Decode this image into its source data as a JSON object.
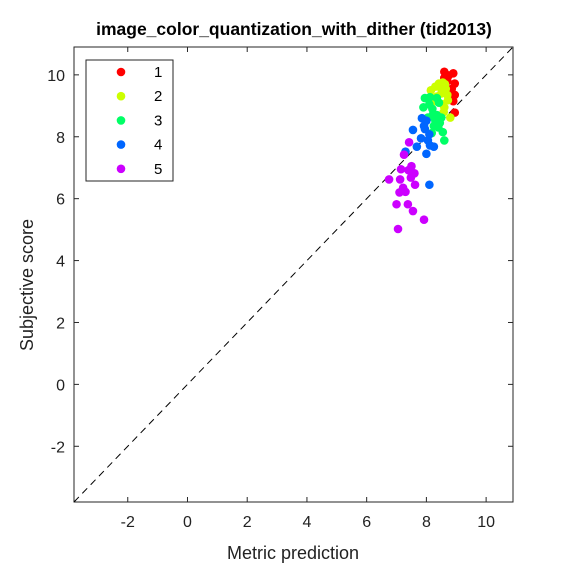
{
  "chart_data": {
    "type": "scatter",
    "title": "image_color_quantization_with_dither (tid2013)",
    "xlabel": "Metric prediction",
    "ylabel": "Subjective score",
    "xlim": [
      -3.8,
      10.9
    ],
    "ylim": [
      -3.8,
      10.9
    ],
    "xticks": [
      -2,
      0,
      2,
      4,
      6,
      8,
      10
    ],
    "yticks": [
      -2,
      0,
      2,
      4,
      6,
      8,
      10
    ],
    "reference_line": "y = x (dashed)",
    "grid": false,
    "legend_placement": "top-left",
    "series": [
      {
        "name": "1",
        "color": "#ff0000",
        "points": [
          [
            8.6,
            10.1
          ],
          [
            8.75,
            9.98
          ],
          [
            8.9,
            10.05
          ],
          [
            8.95,
            9.72
          ],
          [
            8.85,
            9.55
          ],
          [
            8.95,
            9.35
          ],
          [
            8.9,
            9.15
          ],
          [
            8.8,
            9.45
          ],
          [
            8.7,
            9.8
          ],
          [
            8.95,
            8.78
          ],
          [
            8.6,
            9.9
          ],
          [
            8.8,
            9.2
          ]
        ]
      },
      {
        "name": "2",
        "color": "#ccff00",
        "points": [
          [
            8.3,
            9.62
          ],
          [
            8.42,
            9.72
          ],
          [
            8.55,
            9.75
          ],
          [
            8.65,
            9.55
          ],
          [
            8.5,
            9.4
          ],
          [
            8.72,
            9.18
          ],
          [
            8.55,
            9.05
          ],
          [
            8.35,
            9.3
          ],
          [
            8.6,
            8.95
          ],
          [
            8.8,
            8.62
          ],
          [
            8.15,
            9.5
          ],
          [
            8.7,
            9.35
          ],
          [
            8.48,
            9.58
          ],
          [
            8.62,
            9.7
          ],
          [
            8.25,
            9.15
          ],
          [
            8.58,
            8.8
          ]
        ]
      },
      {
        "name": "3",
        "color": "#00ff66",
        "points": [
          [
            7.95,
            9.25
          ],
          [
            8.1,
            9.05
          ],
          [
            8.2,
            8.9
          ],
          [
            8.35,
            8.7
          ],
          [
            8.45,
            8.45
          ],
          [
            8.05,
            8.62
          ],
          [
            8.3,
            8.52
          ],
          [
            8.5,
            8.62
          ],
          [
            8.55,
            8.15
          ],
          [
            8.25,
            8.35
          ],
          [
            8.6,
            7.88
          ],
          [
            7.9,
            8.95
          ],
          [
            8.12,
            9.28
          ],
          [
            8.42,
            9.1
          ],
          [
            8.18,
            8.12
          ],
          [
            8.4,
            8.3
          ],
          [
            8.22,
            8.72
          ],
          [
            8.35,
            9.25
          ]
        ]
      },
      {
        "name": "4",
        "color": "#0066ff",
        "points": [
          [
            7.85,
            8.6
          ],
          [
            8.0,
            8.52
          ],
          [
            7.95,
            8.25
          ],
          [
            8.1,
            8.08
          ],
          [
            7.55,
            8.22
          ],
          [
            7.82,
            7.95
          ],
          [
            8.12,
            7.72
          ],
          [
            8.0,
            7.45
          ],
          [
            7.68,
            7.68
          ],
          [
            8.25,
            7.68
          ],
          [
            8.1,
            6.45
          ],
          [
            7.3,
            7.52
          ],
          [
            7.92,
            8.35
          ],
          [
            8.05,
            7.88
          ]
        ]
      },
      {
        "name": "5",
        "color": "#cc00ff",
        "points": [
          [
            7.42,
            7.82
          ],
          [
            7.25,
            7.42
          ],
          [
            7.5,
            7.05
          ],
          [
            7.6,
            6.82
          ],
          [
            7.48,
            6.68
          ],
          [
            7.12,
            6.62
          ],
          [
            6.75,
            6.62
          ],
          [
            7.3,
            6.22
          ],
          [
            7.1,
            6.2
          ],
          [
            7.22,
            6.35
          ],
          [
            7.0,
            5.82
          ],
          [
            7.38,
            5.82
          ],
          [
            7.55,
            5.6
          ],
          [
            7.92,
            5.32
          ],
          [
            7.05,
            5.02
          ],
          [
            7.4,
            6.92
          ],
          [
            7.62,
            6.45
          ],
          [
            7.15,
            6.95
          ]
        ]
      }
    ]
  }
}
